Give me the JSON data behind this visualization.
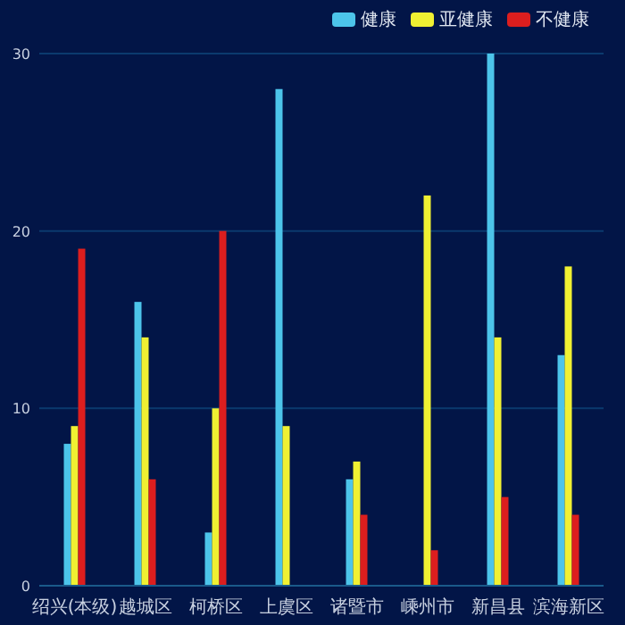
{
  "chart_data": {
    "type": "bar",
    "categories": [
      "绍兴(本级)",
      "越城区",
      "柯桥区",
      "上虞区",
      "诸暨市",
      "嵊州市",
      "新昌县",
      "滨海新区"
    ],
    "series": [
      {
        "name": "健康",
        "color": "#4cc4ea",
        "values": [
          8,
          16,
          3,
          28,
          6,
          0,
          30,
          13
        ]
      },
      {
        "name": "亚健康",
        "color": "#f0f032",
        "values": [
          9,
          14,
          10,
          9,
          7,
          22,
          14,
          18
        ]
      },
      {
        "name": "不健康",
        "color": "#dc1e1e",
        "values": [
          19,
          6,
          20,
          0,
          4,
          2,
          5,
          4
        ]
      }
    ],
    "ylim": [
      0,
      30
    ],
    "yticks": [
      0,
      10,
      20,
      30
    ],
    "grid": "y",
    "legend": "top right"
  }
}
